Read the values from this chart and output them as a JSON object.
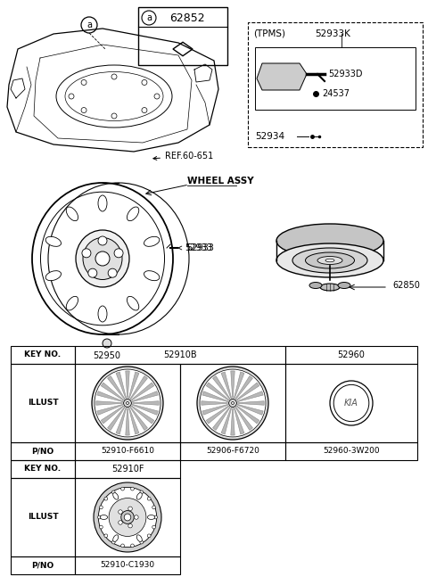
{
  "bg_color": "#ffffff",
  "parts": {
    "box_a_label": "62852",
    "ref_label": "REF.60-651",
    "wheel_assy_label": "WHEEL ASSY",
    "p52933": "52933",
    "p52950": "52950",
    "p62850": "62850",
    "tpms_label": "(TPMS)",
    "p52933K": "52933K",
    "p52933D": "52933D",
    "p24537": "24537",
    "p52934": "52934"
  },
  "table": {
    "row1_keyno": [
      "KEY NO.",
      "52910B",
      "52960"
    ],
    "row1_illust": "ILLUST",
    "row1_pno": [
      "P/NO",
      "52910-F6610",
      "52906-F6720",
      "52960-3W200"
    ],
    "row2_keyno": [
      "KEY NO.",
      "52910F"
    ],
    "row2_illust": "ILLUST",
    "row2_pno": [
      "P/NO",
      "52910-C1930"
    ]
  },
  "colors": {
    "black": "#000000",
    "light_gray": "#d8d8d8",
    "mid_gray": "#aaaaaa",
    "dark_gray": "#888888",
    "white": "#ffffff",
    "spoke_gray": "#999999"
  }
}
